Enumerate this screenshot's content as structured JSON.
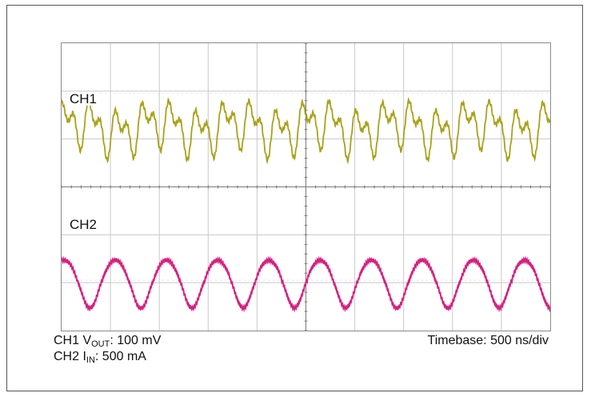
{
  "labels": {
    "ch1": "CH1",
    "ch2": "CH2"
  },
  "captions": {
    "ch1_prefix": "CH1 V",
    "ch1_sub": "OUT",
    "ch1_value": ": 100 mV",
    "ch2_prefix": "CH2 I",
    "ch2_sub": "IN",
    "ch2_value": ": 500 mA",
    "timebase": "Timebase: 500 ns/div"
  },
  "colors": {
    "ch1": "#a9a21a",
    "ch2": "#d4217f",
    "grid": "#c8c8c8",
    "center_axis": "#7a7a7a"
  },
  "chart_data": {
    "type": "line",
    "title": "",
    "xlabel": "",
    "ylabel": "",
    "divisions": {
      "horizontal": 10,
      "vertical": 6
    },
    "grid": true,
    "x_units": "div",
    "xlim": [
      0,
      10
    ],
    "series": [
      {
        "name": "CH1",
        "display_range_div": [
          -3,
          0
        ],
        "x": [
          0,
          0.55,
          1.1,
          1.6,
          2.15,
          2.7,
          3.25,
          3.75,
          4.3,
          4.85,
          5.4,
          5.9,
          6.45,
          7.0,
          7.55,
          8.05,
          8.6,
          9.15,
          9.7
        ],
        "peak_levels_div": [
          0.6,
          0.8,
          0.45,
          0.7,
          0.85,
          0.5,
          0.75,
          0.9,
          0.55,
          0.7,
          0.85,
          0.5,
          0.7,
          0.8,
          0.45,
          0.7,
          0.85,
          0.5,
          0.7
        ]
      },
      {
        "name": "CH2",
        "display_range_div": [
          0,
          3
        ],
        "x": [
          0.2,
          1.25,
          2.3,
          3.35,
          4.4,
          5.45,
          6.5,
          7.55,
          8.6,
          9.65
        ],
        "peak_levels_div": [
          0.15,
          0.15,
          0.15,
          0.15,
          0.15,
          0.15,
          0.15,
          0.15,
          0.15,
          0.15
        ]
      }
    ]
  }
}
